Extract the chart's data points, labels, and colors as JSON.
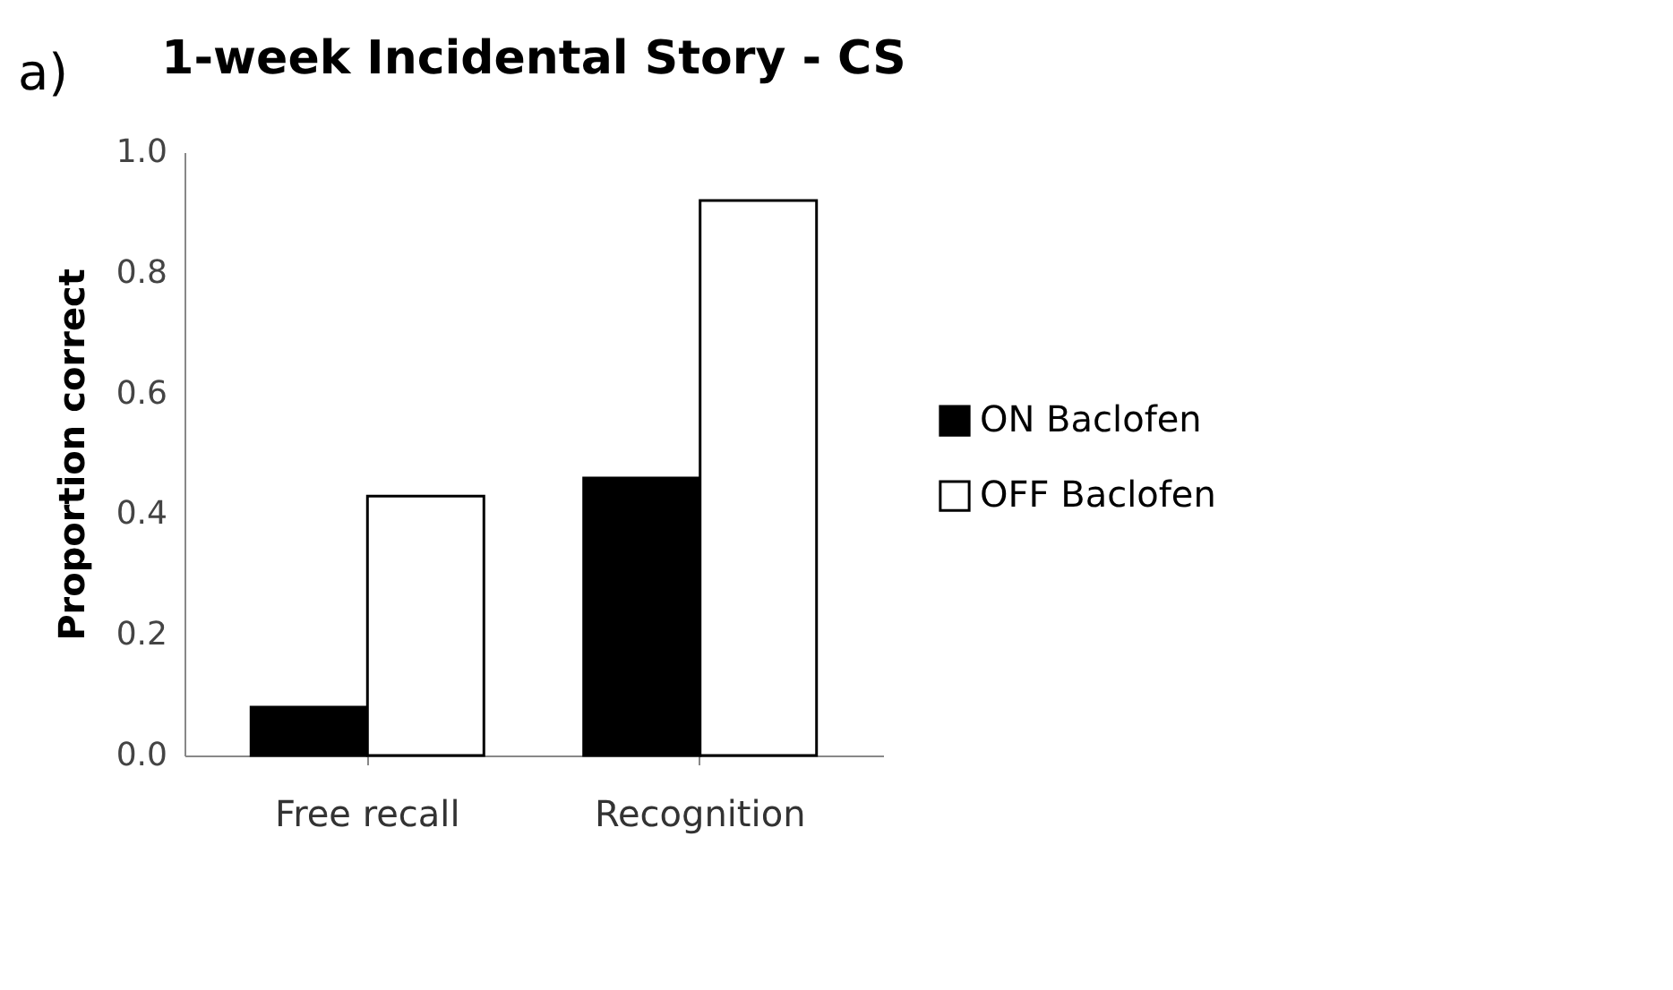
{
  "chart_data": {
    "type": "bar",
    "title": "1-week Incidental Story - CS",
    "ylabel": "Proportion correct",
    "annotations": [
      "a)"
    ],
    "categories": [
      "Free recall",
      "Recognition"
    ],
    "series": [
      {
        "name": "ON Baclofen",
        "color": "#000000",
        "values": [
          0.08,
          0.46
        ]
      },
      {
        "name": "OFF Baclofen",
        "color": "#ffffff",
        "values": [
          0.43,
          0.92
        ]
      }
    ],
    "ylim": [
      0,
      1
    ],
    "yticks": [
      {
        "value": 0,
        "label": "0.0"
      },
      {
        "value": 0.2,
        "label": "0.2"
      },
      {
        "value": 0.4,
        "label": "0.4"
      },
      {
        "value": 0.6,
        "label": "0.6"
      },
      {
        "value": 0.8,
        "label": "0.8"
      },
      {
        "value": 1,
        "label": "1.0"
      }
    ],
    "grid": false,
    "legend": "right"
  }
}
